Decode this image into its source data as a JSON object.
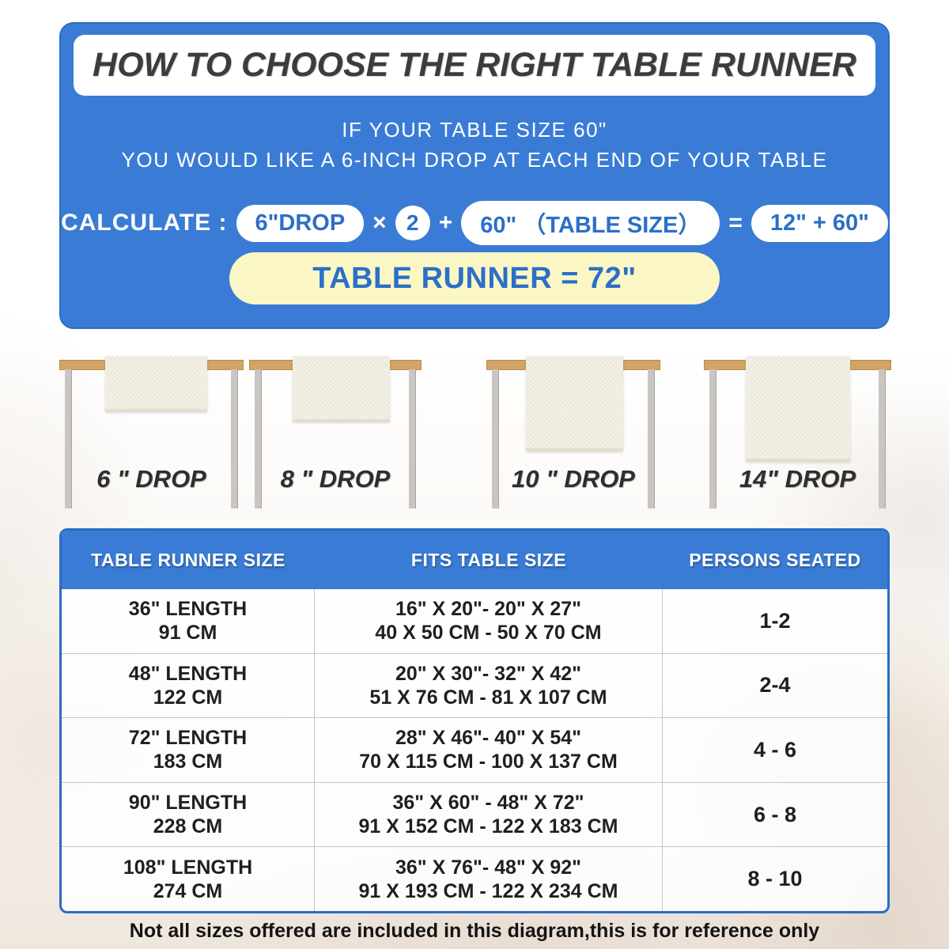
{
  "colors": {
    "primary_blue": "#3a7cd5",
    "accent_blue_text": "#2b6fc8",
    "pill_yellow": "#fbf7c5",
    "tabletop_tan": "#d2a466",
    "leg_gray": "#c9c5c1",
    "runner_cream": "#f0ebdc"
  },
  "header": {
    "title": "HOW TO CHOOSE THE RIGHT TABLE RUNNER",
    "subtitle_line1": "IF YOUR TABLE SIZE 60\"",
    "subtitle_line2": "YOU WOULD LIKE A 6-INCH DROP AT EACH END OF YOUR TABLE"
  },
  "calc": {
    "label": "CALCULATE :",
    "drop_pill": "6\"DROP",
    "times": "×",
    "multiplier": "2",
    "plus": "+",
    "table_pill": "60\" （TABLE SIZE）",
    "equals": "=",
    "sum_pill": "12\" + 60\"",
    "total_pill": "TABLE RUNNER = 72\""
  },
  "diagrams": {
    "items": [
      {
        "label": "6 \" DROP"
      },
      {
        "label": "8 \" DROP"
      },
      {
        "label": "10 \" DROP"
      },
      {
        "label": "14\" DROP"
      }
    ]
  },
  "table": {
    "headers": [
      "TABLE RUNNER SIZE",
      "FITS TABLE SIZE",
      "PERSONS SEATED"
    ],
    "rows": [
      {
        "size_in": "36\" LENGTH",
        "size_cm": "91 CM",
        "fits_in": "16\" X 20\"- 20\" X 27\"",
        "fits_cm": "40 X 50 CM - 50 X 70 CM",
        "persons": "1-2"
      },
      {
        "size_in": "48\" LENGTH",
        "size_cm": "122 CM",
        "fits_in": "20\" X 30\"- 32\" X 42\"",
        "fits_cm": "51 X 76 CM - 81 X 107 CM",
        "persons": "2-4"
      },
      {
        "size_in": "72\" LENGTH",
        "size_cm": "183 CM",
        "fits_in": "28\" X 46\"- 40\" X 54\"",
        "fits_cm": "70 X 115 CM - 100 X 137 CM",
        "persons": "4 - 6"
      },
      {
        "size_in": "90\" LENGTH",
        "size_cm": "228 CM",
        "fits_in": "36\" X 60\" - 48\" X 72\"",
        "fits_cm": "91 X 152 CM - 122 X 183 CM",
        "persons": "6 - 8"
      },
      {
        "size_in": "108\" LENGTH",
        "size_cm": "274 CM",
        "fits_in": "36\" X 76\"- 48\" X 92\"",
        "fits_cm": "91 X 193 CM - 122 X 234 CM",
        "persons": "8 - 10"
      }
    ]
  },
  "footer": {
    "note": "Not all sizes offered are included in this diagram,this is for reference only"
  }
}
